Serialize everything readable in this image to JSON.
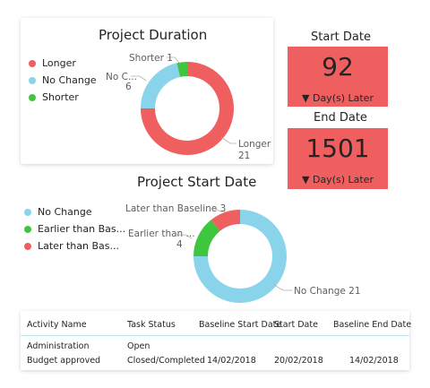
{
  "project_duration": {
    "title": "Project Duration",
    "legend": [
      {
        "label": "Longer",
        "color": "#f05f5f"
      },
      {
        "label": "No Change",
        "color": "#89d4eb"
      },
      {
        "label": "Shorter",
        "color": "#3fc63f"
      }
    ],
    "callouts": {
      "shorter": "Shorter 1",
      "no_change_name": "No C...",
      "no_change_value": "6",
      "longer_name": "Longer",
      "longer_value": "21"
    }
  },
  "kpis": {
    "start_date": {
      "title": "Start Date",
      "value": "92",
      "subtitle": "▼ Day(s) Later"
    },
    "end_date": {
      "title": "End Date",
      "value": "1501",
      "subtitle": "▼ Day(s) Later"
    }
  },
  "project_start_date": {
    "title": "Project Start Date",
    "legend": [
      {
        "label": "No Change",
        "color": "#89d4eb"
      },
      {
        "label": "Earlier than Bas...",
        "color": "#3fc63f"
      },
      {
        "label": "Later than Bas...",
        "color": "#f05f5f"
      }
    ],
    "callouts": {
      "later": "Later than Baseline 3",
      "earlier_name": "Earlier than ...",
      "earlier_value": "4",
      "no_change": "No Change 21"
    }
  },
  "table": {
    "columns": [
      "Activity Name",
      "Task Status",
      "Baseline Start Date",
      "Start Date",
      "Baseline End Date"
    ],
    "rows": [
      [
        "Administration",
        "Open",
        "",
        "",
        ""
      ],
      [
        "Budget approved",
        "Closed/Completed",
        "14/02/2018",
        "20/02/2018",
        "14/02/2018"
      ]
    ]
  },
  "chart_data": [
    {
      "type": "pie",
      "title": "Project Duration",
      "categories": [
        "Longer",
        "No Change",
        "Shorter"
      ],
      "values": [
        21,
        6,
        1
      ],
      "colors": [
        "#f05f5f",
        "#89d4eb",
        "#3fc63f"
      ],
      "donut": true,
      "legend_position": "left"
    },
    {
      "type": "pie",
      "title": "Project Start Date",
      "categories": [
        "No Change",
        "Earlier than Baseline",
        "Later than Baseline"
      ],
      "values": [
        21,
        4,
        3
      ],
      "colors": [
        "#89d4eb",
        "#3fc63f",
        "#f05f5f"
      ],
      "donut": true,
      "legend_position": "top-left"
    }
  ]
}
